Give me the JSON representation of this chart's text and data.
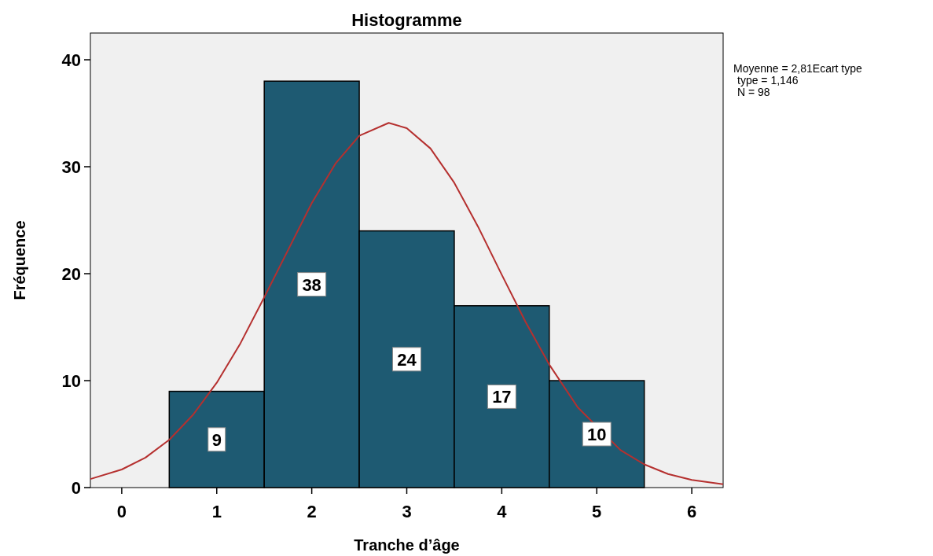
{
  "chart_data": {
    "type": "histogram",
    "title": "Histogramme",
    "xlabel": "Tranche d’âge",
    "ylabel": "Fréquence",
    "bins": [
      0.5,
      1.5,
      2.5,
      3.5,
      4.5,
      5.5
    ],
    "values": [
      9,
      38,
      24,
      17,
      10
    ],
    "color": "#1e5a72",
    "value_labels": [
      "9",
      "38",
      "24",
      "17",
      "10"
    ],
    "xlim": [
      -0.33,
      6.33
    ],
    "xticks": [
      0,
      1,
      2,
      3,
      4,
      5,
      6
    ],
    "ylim": [
      0,
      42.5
    ],
    "yticks": [
      0,
      10,
      20,
      30,
      40
    ],
    "grid": false,
    "series": [
      {
        "type": "line",
        "color": "#b5302f",
        "x": [
          -0.33,
          0,
          0.25,
          0.5,
          0.75,
          1,
          1.25,
          1.5,
          1.75,
          2,
          2.25,
          2.5,
          2.81,
          3,
          3.25,
          3.5,
          3.75,
          4,
          4.25,
          4.5,
          4.8,
          5.25,
          5.5,
          5.75,
          6,
          6.33
        ],
        "values": [
          0.8,
          1.69,
          2.8,
          4.47,
          6.8,
          9.8,
          13.5,
          17.8,
          22.2,
          26.6,
          30.3,
          32.9,
          34.1,
          33.6,
          31.7,
          28.5,
          24.4,
          19.9,
          15.5,
          11.5,
          7.5,
          3.5,
          2.17,
          1.27,
          0.71,
          0.31
        ]
      }
    ],
    "annotations": [
      "Moyenne = 2,81Ecart type",
      "type = 1,146",
      "N = 98"
    ]
  }
}
